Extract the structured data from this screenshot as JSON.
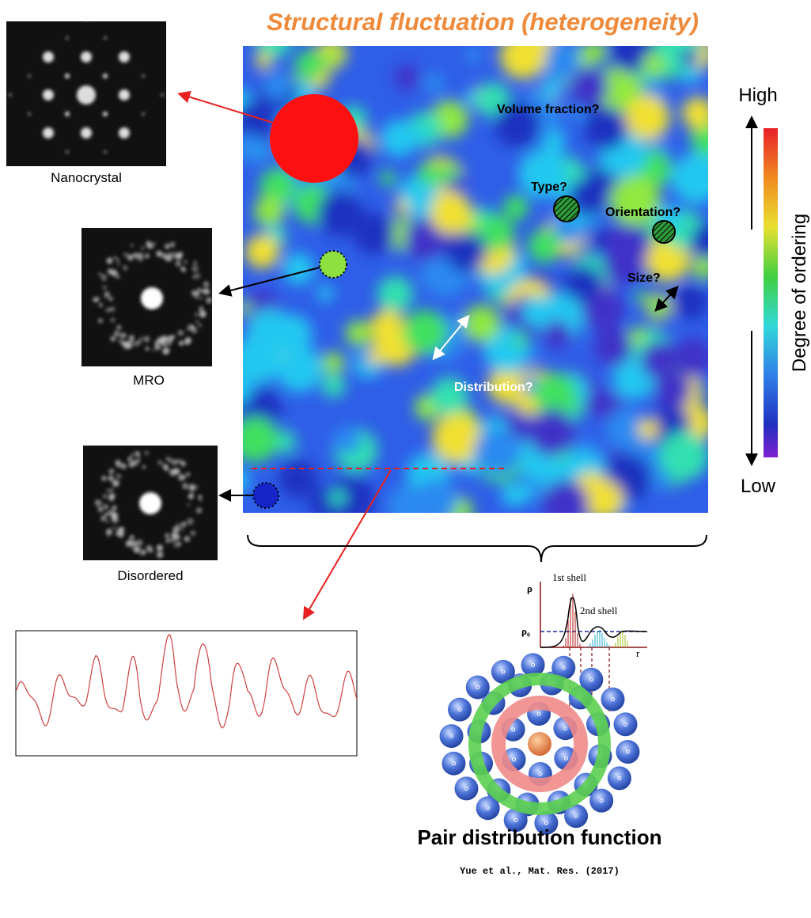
{
  "title": "Structural fluctuation (heterogeneity)",
  "patterns": [
    {
      "label": "Nanocrystal"
    },
    {
      "label": "MRO"
    },
    {
      "label": "Disordered"
    }
  ],
  "map_labels": {
    "volume_fraction": "Volume fraction?",
    "type": "Type?",
    "orientation": "Orientation?",
    "size": "Size?",
    "distribution": "Distribution?"
  },
  "colorbar": {
    "high": "High",
    "low": "Low",
    "label": "Degree of ordering"
  },
  "pdf_plot": {
    "y_label": "ρ",
    "reference_label": "ρ₀",
    "first_shell": "1st shell",
    "second_shell": "2nd shell",
    "x_label": "r"
  },
  "caption": "Pair distribution function",
  "citation": "Yue et al., Mat. Res. (2017)"
}
